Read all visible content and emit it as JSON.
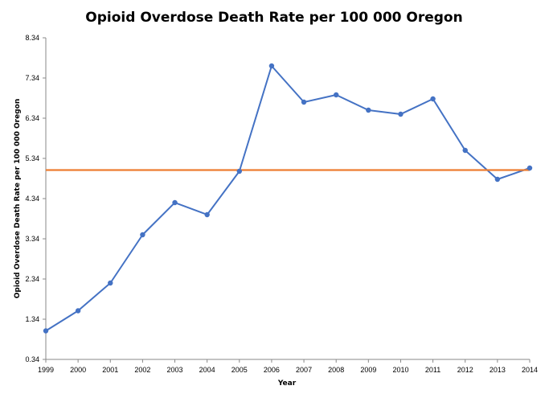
{
  "chart_data": {
    "type": "line",
    "title": "Opioid Overdose Death Rate per 100 000 Oregon",
    "xlabel": "Year",
    "ylabel": "Opioid  Overdose Death  Rate per 100 000 Oregon",
    "x": [
      "1999",
      "2000",
      "2001",
      "2002",
      "2003",
      "2004",
      "2005",
      "2006",
      "2007",
      "2008",
      "2009",
      "2010",
      "2011",
      "2012",
      "2013",
      "2014"
    ],
    "yticks": [
      "0.34",
      "1.34",
      "2.34",
      "3.34",
      "4.34",
      "5.34",
      "6.34",
      "7.34",
      "8.34"
    ],
    "ylim": [
      0.34,
      8.34
    ],
    "grid": false,
    "legend": "none",
    "series": [
      {
        "color": "#4472c4",
        "markers": true,
        "values": [
          1.05,
          1.55,
          2.24,
          3.44,
          4.24,
          3.94,
          5.02,
          7.64,
          6.74,
          6.92,
          6.54,
          6.44,
          6.82,
          5.54,
          4.82,
          5.1
        ]
      },
      {
        "color": "#ed7d31",
        "markers": false,
        "values": [
          5.05,
          5.05,
          5.05,
          5.05,
          5.05,
          5.05,
          5.05,
          5.05,
          5.05,
          5.05,
          5.05,
          5.05,
          5.05,
          5.05,
          5.05,
          5.05
        ]
      }
    ]
  }
}
